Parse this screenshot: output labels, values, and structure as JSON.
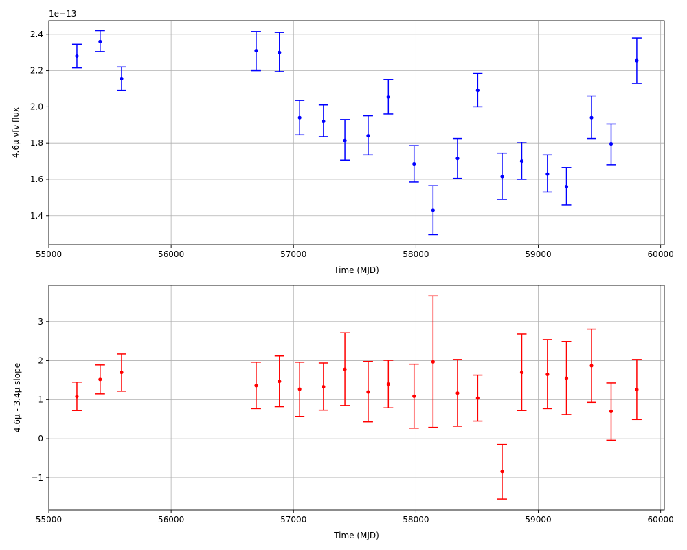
{
  "chart_data": [
    {
      "type": "scatter",
      "title": "",
      "xlabel": "Time (MJD)",
      "ylabel": "4.6$\\mu$ $\\nu f \\nu$ flux",
      "ylabel_display": "4.6μ νfν flux",
      "y_offset_label": "1e−13",
      "y_scale": 1e-13,
      "xlim": [
        55000,
        60030
      ],
      "ylim": [
        1.24,
        2.475
      ],
      "xticks": [
        55000,
        56000,
        57000,
        58000,
        59000,
        60000
      ],
      "yticks": [
        1.4,
        1.6,
        1.8,
        2.0,
        2.2,
        2.4
      ],
      "ytick_labels": [
        "1.4",
        "1.6",
        "1.8",
        "2.0",
        "2.2",
        "2.4"
      ],
      "grid": true,
      "color": "#0000ff",
      "series": [
        {
          "x": [
            55230,
            55420,
            55595,
            56695,
            56885,
            57050,
            57245,
            57420,
            57610,
            57775,
            57985,
            58140,
            58340,
            58505,
            58705,
            58865,
            59075,
            59230,
            59435,
            59595,
            59805
          ],
          "y": [
            2.28,
            2.36,
            2.155,
            2.31,
            2.3,
            1.94,
            1.92,
            1.815,
            1.84,
            2.055,
            1.685,
            1.43,
            1.715,
            2.09,
            1.615,
            1.7,
            1.63,
            1.56,
            1.94,
            1.795,
            2.255
          ],
          "yerr_low": [
            2.215,
            2.305,
            2.09,
            2.2,
            2.195,
            1.845,
            1.835,
            1.705,
            1.735,
            1.96,
            1.585,
            1.295,
            1.605,
            2.0,
            1.49,
            1.6,
            1.53,
            1.46,
            1.825,
            1.68,
            2.13
          ],
          "yerr_high": [
            2.345,
            2.42,
            2.22,
            2.415,
            2.41,
            2.035,
            2.01,
            1.93,
            1.95,
            2.15,
            1.785,
            1.565,
            1.825,
            2.185,
            1.745,
            1.805,
            1.735,
            1.665,
            2.06,
            1.905,
            2.38
          ]
        }
      ]
    },
    {
      "type": "scatter",
      "title": "",
      "xlabel": "Time (MJD)",
      "ylabel": "4.6$\\mu$ - 3.4$\\mu$ slope",
      "ylabel_display": "4.6μ - 3.4μ slope",
      "xlim": [
        55000,
        60030
      ],
      "ylim": [
        -1.83,
        3.93
      ],
      "xticks": [
        55000,
        56000,
        57000,
        58000,
        59000,
        60000
      ],
      "yticks": [
        -1,
        0,
        1,
        2,
        3
      ],
      "ytick_labels": [
        "−1",
        "0",
        "1",
        "2",
        "3"
      ],
      "grid": true,
      "color": "#ff0000",
      "series": [
        {
          "x": [
            55230,
            55420,
            55595,
            56695,
            56885,
            57050,
            57245,
            57420,
            57610,
            57775,
            57985,
            58140,
            58340,
            58505,
            58705,
            58865,
            59075,
            59230,
            59435,
            59595,
            59805
          ],
          "y": [
            1.08,
            1.52,
            1.7,
            1.36,
            1.47,
            1.27,
            1.33,
            1.78,
            1.2,
            1.4,
            1.09,
            1.97,
            1.17,
            1.04,
            -0.84,
            1.7,
            1.65,
            1.55,
            1.87,
            0.7,
            1.26
          ],
          "yerr_low": [
            0.72,
            1.15,
            1.22,
            0.77,
            0.82,
            0.57,
            0.73,
            0.85,
            0.43,
            0.79,
            0.27,
            0.29,
            0.32,
            0.45,
            -1.55,
            0.72,
            0.77,
            0.62,
            0.93,
            -0.04,
            0.49
          ],
          "yerr_high": [
            1.45,
            1.89,
            2.17,
            1.96,
            2.12,
            1.96,
            1.94,
            2.71,
            1.98,
            2.01,
            1.91,
            3.66,
            2.03,
            1.63,
            -0.15,
            2.68,
            2.54,
            2.49,
            2.81,
            1.43,
            2.03
          ]
        }
      ]
    }
  ]
}
